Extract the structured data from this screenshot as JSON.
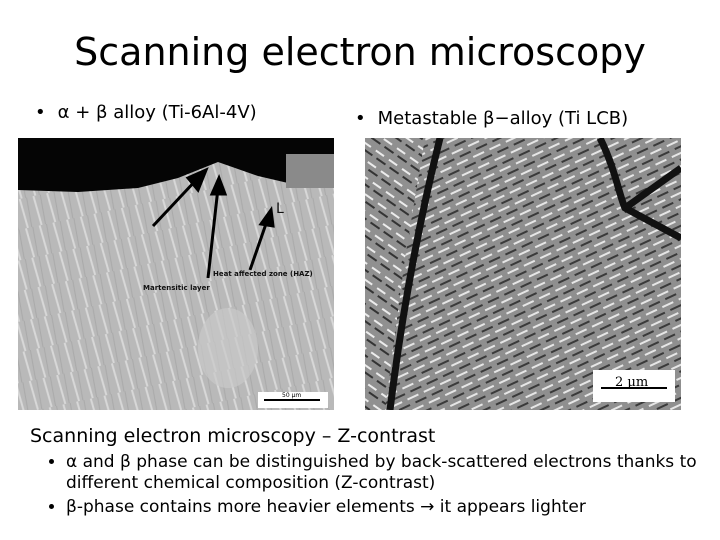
{
  "title": "Scanning electron microscopy",
  "left_panel": {
    "caption": "α + β alloy (Ti-6Al-4V)",
    "image_labels": {
      "haz": "Heat affected zone (HAZ)",
      "martensitic": "Martensitic layer",
      "layer_mark": "L",
      "scale": "50 μm"
    }
  },
  "right_panel": {
    "caption": "Metastable β−alloy (Ti LCB)",
    "image_labels": {
      "scale": "2 μm"
    }
  },
  "section": {
    "heading": "Scanning electron microscopy – Z-contrast",
    "bullets": [
      "α and β phase can be distinguished by back-scattered electrons thanks to different chemical composition (Z-contrast)",
      "β-phase contains more heavier elements → it appears lighter"
    ]
  }
}
